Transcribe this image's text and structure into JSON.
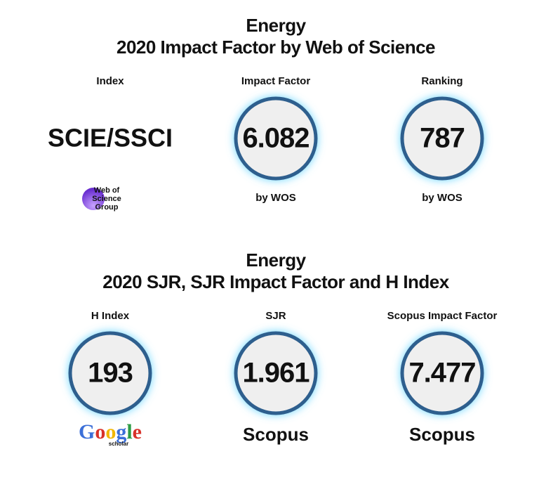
{
  "sections": [
    {
      "title": [
        "Energy",
        "2020 Impact Factor by Web of Science"
      ],
      "columns": [
        {
          "label": "Index",
          "value": "SCIE/SSCI",
          "logo": [
            "Web of",
            "Science",
            "Group"
          ]
        },
        {
          "label": "Impact Factor",
          "value": 6.082,
          "source": "by WOS"
        },
        {
          "label": "Ranking",
          "value": 787,
          "source": "by WOS"
        }
      ]
    },
    {
      "title": [
        "Energy",
        "2020 SJR, SJR Impact Factor and H Index"
      ],
      "columns": [
        {
          "label": "H Index",
          "value": 193,
          "logo": [
            "Google",
            "scholar"
          ]
        },
        {
          "label": "SJR",
          "value": 1.961,
          "logo": [
            "Scopus"
          ]
        },
        {
          "label": "Scopus Impact Factor",
          "value": 7.477,
          "logo": [
            "Scopus"
          ]
        }
      ]
    }
  ]
}
